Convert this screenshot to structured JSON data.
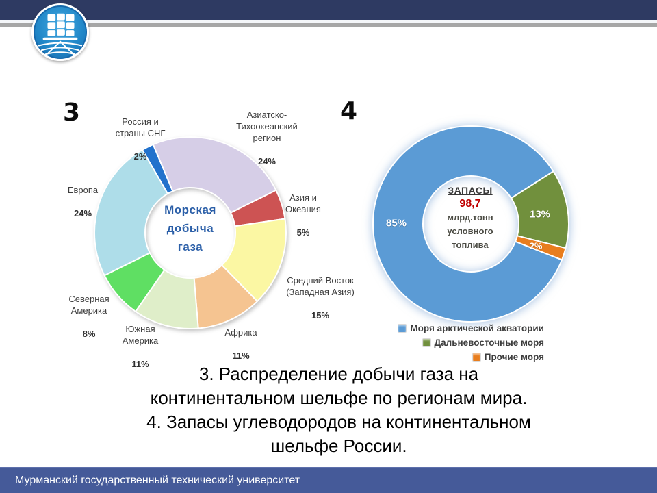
{
  "header": {
    "bar_color": "#2e3a62",
    "stripe_color": "#a6a6a6"
  },
  "icons": {
    "logo": "university-ship-emblem"
  },
  "figure3": {
    "number": "3",
    "center_title": "Морская\nдобыча\nгаза",
    "labels": [
      {
        "name": "Россия и\nстраны СНГ",
        "pct": "2%"
      },
      {
        "name": "Азиатско-\nТихоокеанский\nрегион",
        "pct": "24%"
      },
      {
        "name": "Европа",
        "pct": "24%"
      },
      {
        "name": "Азия и\nОкеания",
        "pct": "5%"
      },
      {
        "name": "Средний Восток\n(Западная Азия)",
        "pct": "15%"
      },
      {
        "name": "Африка",
        "pct": "11%"
      },
      {
        "name": "Южная\nАмерика",
        "pct": "11%"
      },
      {
        "name": "Северная\nАмерика",
        "pct": "8%"
      }
    ]
  },
  "figure4": {
    "number": "4",
    "center": {
      "title": "ЗАПАСЫ",
      "value": "98,7",
      "unit": "млрд.тонн\nусловного\nтоплива"
    },
    "slice_labels": {
      "blue": "85%",
      "green": "13%",
      "orange": "2%"
    },
    "legend": [
      {
        "label": "Моря арктической акватории",
        "color": "#5b9bd5"
      },
      {
        "label": "Дальневосточные моря",
        "color": "#71903d"
      },
      {
        "label": "Прочие моря",
        "color": "#e87d1e"
      }
    ]
  },
  "chart_data": [
    {
      "type": "pie",
      "donut": true,
      "title": "Морская добыча газа",
      "start_angle": -30,
      "categories": [
        "Россия и страны СНГ",
        "Азиатско-Тихоокеанский регион",
        "Азия и Океания",
        "Средний Восток (Западная Азия)",
        "Африка",
        "Южная Америка",
        "Северная Америка",
        "Европа"
      ],
      "values": [
        2,
        24,
        5,
        15,
        11,
        11,
        8,
        24
      ],
      "unit": "%",
      "colors": [
        "#2272cc",
        "#d6cee7",
        "#cd5353",
        "#fbf7a3",
        "#f5c491",
        "#dfeec9",
        "#5fdf63",
        "#aedde9"
      ],
      "legend_position": "none"
    },
    {
      "type": "pie",
      "donut": true,
      "title": "Запасы углеводородов на континентальном шельфе России",
      "center_label": "ЗАПАСЫ 98,7 млрд.тонн условного топлива",
      "start_angle": 111.5,
      "categories": [
        "Моря арктической акватории",
        "Дальневосточные моря",
        "Прочие моря"
      ],
      "values": [
        85,
        13,
        2
      ],
      "unit": "%",
      "colors": [
        "#5b9bd5",
        "#71903d",
        "#e87d1e"
      ],
      "legend_position": "bottom-right"
    }
  ],
  "caption": "3. Распределение добычи газа на\nконтинентальном шельфе по регионам мира.\n4. Запасы углеводородов на континентальном\nшельфе России.",
  "footer": {
    "text": "Мурманский государственный технический университет"
  }
}
